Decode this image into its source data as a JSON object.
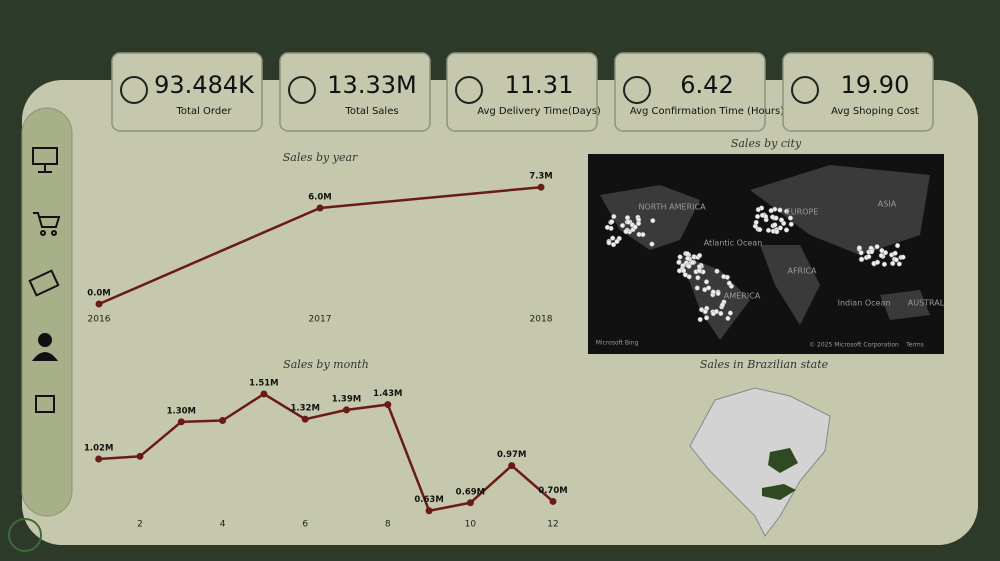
{
  "kpis": [
    {
      "value": "93.484K",
      "label": "Total Order"
    },
    {
      "value": "13.33M",
      "label": "Total Sales"
    },
    {
      "value": "11.31",
      "label": "Avg Delivery Time(Days)"
    },
    {
      "value": "6.42",
      "label": "Avg Confirmation Time (Hours)"
    },
    {
      "value": "19.90",
      "label": "Avg Shoping Cost"
    }
  ],
  "chart_data": [
    {
      "type": "line",
      "title": "Sales by year",
      "color": "#6b1a1a",
      "x": [
        2016,
        2017,
        2018
      ],
      "xlim": [
        2016,
        2018
      ],
      "xticks": [
        2016,
        2017,
        2018
      ],
      "values": [
        0.0,
        6.0,
        7.3
      ],
      "value_labels": [
        "0.0M",
        "6.0M",
        "7.3M"
      ],
      "ylim": [
        0,
        8
      ]
    },
    {
      "type": "line",
      "title": "Sales by month",
      "color": "#6b1a1a",
      "x": [
        1,
        2,
        3,
        4,
        5,
        6,
        7,
        8,
        9,
        10,
        11,
        12
      ],
      "xlim": [
        1,
        12
      ],
      "xticks": [
        2,
        4,
        6,
        8,
        10,
        12
      ],
      "values": [
        1.02,
        1.04,
        1.3,
        1.31,
        1.51,
        1.32,
        1.39,
        1.43,
        0.63,
        0.69,
        0.97,
        0.7
      ],
      "value_labels": [
        "1.02M",
        null,
        "1.30M",
        null,
        "1.51M",
        "1.32M",
        "1.39M",
        "1.43M",
        "0.63M",
        "0.69M",
        "0.97M",
        "0.70M"
      ],
      "ylim": [
        0.5,
        1.6
      ]
    },
    {
      "type": "map",
      "title": "Sales by city",
      "labels": [
        "NORTH AMERICA",
        "EUROPE",
        "ASIA",
        "Atlantic Ocean",
        "AFRICA",
        "AMERICA",
        "Indian Ocean",
        "AUSTRAL",
        "Microsoft Bing",
        "© 2025 Microsoft Corporation",
        "Terms"
      ]
    },
    {
      "type": "region",
      "title": "Sales in Brazilian state"
    }
  ]
}
